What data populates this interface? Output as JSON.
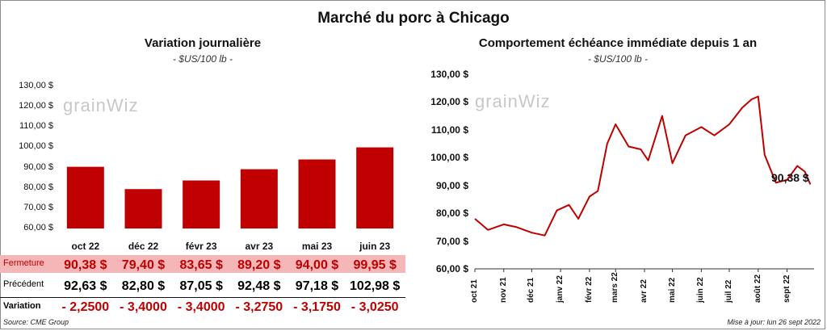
{
  "title": "Marché du porc à Chicago",
  "left": {
    "title": "Variation  journalière",
    "unit": "- $US/100 lb -",
    "y_ticks": [
      "130,00 $",
      "120,00 $",
      "110,00 $",
      "100,00 $",
      "90,00 $",
      "80,00 $",
      "70,00 $",
      "60,00 $"
    ],
    "table": {
      "rows": [
        {
          "label": "Fermeture",
          "values": [
            "90,38  $",
            "79,40  $",
            "83,65  $",
            "89,20  $",
            "94,00  $",
            "99,95  $"
          ]
        },
        {
          "label": "Précédent",
          "values": [
            "92,63  $",
            "82,80  $",
            "87,05  $",
            "92,48  $",
            "97,18  $",
            "102,98  $"
          ]
        },
        {
          "label": "Variation",
          "values": [
            "- 2,2500",
            "- 3,4000",
            "- 3,4000",
            "- 3,2750",
            "- 3,1750",
            "- 3,0250"
          ]
        }
      ]
    }
  },
  "right": {
    "title": "Comportement  échéance immédiate depuis 1 an",
    "unit": "- $US/100 lb -",
    "y_ticks": [
      "130,00 $",
      "120,00 $",
      "110,00 $",
      "100,00 $",
      "90,00 $",
      "80,00 $",
      "70,00 $",
      "60,00 $"
    ],
    "months": [
      "oct 21",
      "nov 21",
      "déc 21",
      "janv 22",
      "févr 22",
      "mars 22",
      "avr 22",
      "mai 22",
      "juin 22",
      "juil 22",
      "août 22",
      "sept 22"
    ],
    "last_value_label": "90,38 $"
  },
  "watermark": "grainWiz",
  "source": "Source: CME Group",
  "updated": "Mise à jour: lun 26 sept 2022",
  "colors": {
    "bar": "#c00000",
    "line": "#c00000",
    "fermeture_bg": "#f4b6b6",
    "negative": "#c00000"
  },
  "chart_data": [
    {
      "type": "bar",
      "categories": [
        "oct 22",
        "déc 22",
        "févr 23",
        "avr 23",
        "mai 23",
        "juin 23"
      ],
      "values": [
        90.38,
        79.4,
        83.65,
        89.2,
        94.0,
        99.95
      ],
      "title": "Variation  journalière",
      "ylabel": "- $US/100 lb -",
      "ylim": [
        60,
        130
      ]
    },
    {
      "type": "line",
      "title": "Comportement  échéance immédiate depuis 1 an",
      "ylabel": "- $US/100 lb -",
      "ylim": [
        60,
        130
      ],
      "x": [
        "2021-10-01",
        "2021-10-15",
        "2021-11-01",
        "2021-11-15",
        "2021-12-01",
        "2021-12-15",
        "2021-12-28",
        "2022-01-10",
        "2022-01-20",
        "2022-02-01",
        "2022-02-10",
        "2022-02-20",
        "2022-03-01",
        "2022-03-15",
        "2022-03-28",
        "2022-04-05",
        "2022-04-20",
        "2022-05-01",
        "2022-05-15",
        "2022-06-01",
        "2022-06-15",
        "2022-07-01",
        "2022-07-15",
        "2022-07-25",
        "2022-08-01",
        "2022-08-08",
        "2022-08-20",
        "2022-09-01",
        "2022-09-12",
        "2022-09-20",
        "2022-09-26"
      ],
      "y": [
        78,
        74,
        76,
        75,
        73,
        72,
        81,
        83,
        78,
        86,
        88,
        105,
        112,
        104,
        103,
        99,
        115,
        98,
        108,
        111,
        108,
        112,
        118,
        121,
        122,
        101,
        91,
        92,
        97,
        95,
        90.38
      ],
      "last_label": "90,38 $"
    }
  ]
}
